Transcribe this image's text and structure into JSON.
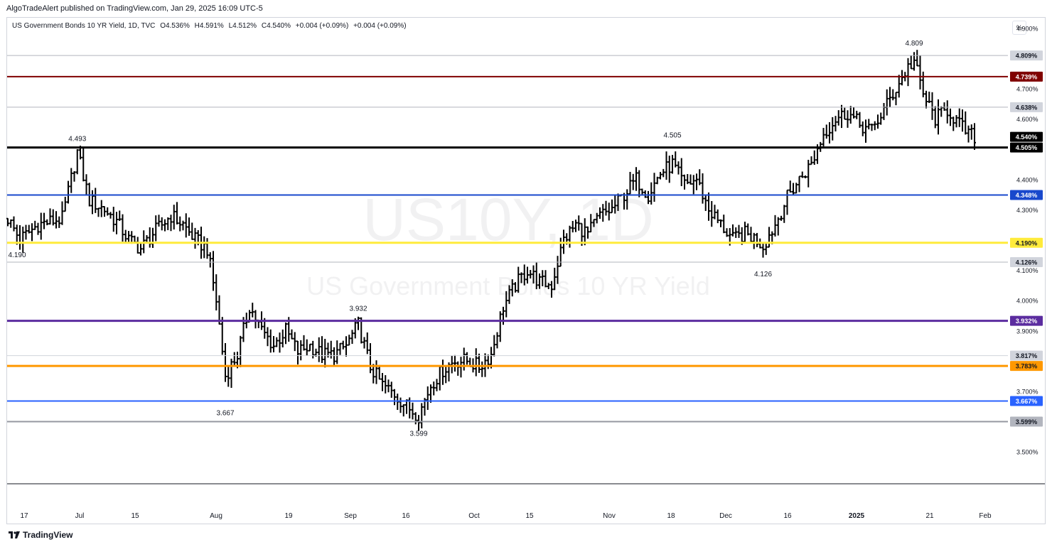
{
  "publisher": "AlgoTradeAlert published on TradingView.com, Jan 29, 2025 16:09 UTC-5",
  "legend": {
    "symbol": "US Government Bonds 10 YR Yield, 1D, TVC",
    "open": "O4.536%",
    "high": "H4.591%",
    "low": "L4.512%",
    "close": "C4.540%",
    "change1": "+0.004 (+0.09%)",
    "change2": "+0.004 (+0.09%)"
  },
  "scale_button": "%",
  "footer_logo_text": "TradingView",
  "watermark": {
    "ticker": "US10Y, 1D",
    "name": "US Government Bonds 10 YR Yield"
  },
  "chart_data": {
    "type": "ohlc",
    "ylim": [
      3.45,
      4.95
    ],
    "y_ticks": [
      "4.900%",
      "4.700%",
      "4.600%",
      "4.400%",
      "4.300%",
      "4.100%",
      "4.000%",
      "3.900%",
      "3.700%",
      "3.500%"
    ],
    "x_ticks": [
      "17",
      "Jul",
      "15",
      "Aug",
      "19",
      "Sep",
      "16",
      "Oct",
      "15",
      "Nov",
      "18",
      "Dec",
      "16",
      "2025",
      "21",
      "Feb"
    ],
    "horizontal_lines": [
      {
        "value": 4.809,
        "label": "4.809%",
        "color": "#b2b5be",
        "badge_bg": "#d1d4dc",
        "badge_fg": "#131722",
        "width": 1
      },
      {
        "value": 4.739,
        "label": "4.739%",
        "color": "#800000",
        "badge_bg": "#800000",
        "badge_fg": "#ffffff",
        "width": 2
      },
      {
        "value": 4.638,
        "label": "4.638%",
        "color": "#b2b5be",
        "badge_bg": "#d1d4dc",
        "badge_fg": "#131722",
        "width": 1
      },
      {
        "value": 4.505,
        "label": "4.505%",
        "color": "#000000",
        "badge_bg": "#000000",
        "badge_fg": "#ffffff",
        "width": 3
      },
      {
        "value": 4.348,
        "label": "4.348%",
        "color": "#1848cc",
        "badge_bg": "#1848cc",
        "badge_fg": "#ffffff",
        "width": 2
      },
      {
        "value": 4.19,
        "label": "4.190%",
        "color": "#ffeb3b",
        "badge_bg": "#ffeb3b",
        "badge_fg": "#131722",
        "width": 3
      },
      {
        "value": 4.126,
        "label": "4.126%",
        "color": "#b2b5be",
        "badge_bg": "#d1d4dc",
        "badge_fg": "#131722",
        "width": 1
      },
      {
        "value": 3.932,
        "label": "3.932%",
        "color": "#5b2c9f",
        "badge_bg": "#5b2c9f",
        "badge_fg": "#ffffff",
        "width": 3
      },
      {
        "value": 3.817,
        "label": "3.817%",
        "color": "#d1d4dc",
        "badge_bg": "#d1d4dc",
        "badge_fg": "#131722",
        "width": 1
      },
      {
        "value": 3.783,
        "label": "3.783%",
        "color": "#ff9800",
        "badge_bg": "#ff9800",
        "badge_fg": "#131722",
        "width": 3
      },
      {
        "value": 3.667,
        "label": "3.667%",
        "color": "#2962ff",
        "badge_bg": "#2962ff",
        "badge_fg": "#ffffff",
        "width": 2
      },
      {
        "value": 3.599,
        "label": "3.599%",
        "color": "#9598a1",
        "badge_bg": "#b2b5be",
        "badge_fg": "#131722",
        "width": 2
      }
    ],
    "last_price": {
      "value": 4.54,
      "label": "4.540%",
      "badge_bg": "#000000",
      "badge_fg": "#ffffff"
    },
    "annotations": [
      {
        "text": "4.493",
        "bar": 23,
        "value": 4.493,
        "position": "above"
      },
      {
        "text": "4.190",
        "bar": 0,
        "value": 4.19,
        "position": "below"
      },
      {
        "text": "3.667",
        "bar": 72,
        "value": 3.667,
        "position": "below"
      },
      {
        "text": "3.932",
        "bar": 116,
        "value": 3.932,
        "position": "above"
      },
      {
        "text": "3.599",
        "bar": 136,
        "value": 3.599,
        "position": "below"
      },
      {
        "text": "4.505",
        "bar": 220,
        "value": 4.505,
        "position": "above"
      },
      {
        "text": "4.126",
        "bar": 250,
        "value": 4.126,
        "position": "below"
      },
      {
        "text": "4.809",
        "bar": 300,
        "value": 4.809,
        "position": "above"
      }
    ],
    "anchors": [
      [
        0,
        4.27
      ],
      [
        4,
        4.2
      ],
      [
        10,
        4.25
      ],
      [
        18,
        4.27
      ],
      [
        23,
        4.49
      ],
      [
        27,
        4.33
      ],
      [
        32,
        4.3
      ],
      [
        36,
        4.26
      ],
      [
        40,
        4.2
      ],
      [
        44,
        4.17
      ],
      [
        48,
        4.22
      ],
      [
        54,
        4.28
      ],
      [
        58,
        4.25
      ],
      [
        62,
        4.2
      ],
      [
        66,
        4.17
      ],
      [
        69,
        4.0
      ],
      [
        72,
        3.75
      ],
      [
        76,
        3.82
      ],
      [
        80,
        3.98
      ],
      [
        84,
        3.9
      ],
      [
        88,
        3.85
      ],
      [
        92,
        3.9
      ],
      [
        96,
        3.83
      ],
      [
        100,
        3.85
      ],
      [
        104,
        3.82
      ],
      [
        108,
        3.82
      ],
      [
        112,
        3.85
      ],
      [
        116,
        3.92
      ],
      [
        120,
        3.78
      ],
      [
        124,
        3.72
      ],
      [
        128,
        3.69
      ],
      [
        132,
        3.65
      ],
      [
        136,
        3.62
      ],
      [
        140,
        3.72
      ],
      [
        144,
        3.77
      ],
      [
        148,
        3.8
      ],
      [
        152,
        3.8
      ],
      [
        156,
        3.78
      ],
      [
        160,
        3.82
      ],
      [
        164,
        3.98
      ],
      [
        168,
        4.05
      ],
      [
        172,
        4.1
      ],
      [
        176,
        4.06
      ],
      [
        180,
        4.05
      ],
      [
        184,
        4.2
      ],
      [
        188,
        4.25
      ],
      [
        192,
        4.22
      ],
      [
        196,
        4.28
      ],
      [
        200,
        4.3
      ],
      [
        204,
        4.35
      ],
      [
        208,
        4.4
      ],
      [
        212,
        4.35
      ],
      [
        216,
        4.42
      ],
      [
        220,
        4.45
      ],
      [
        224,
        4.38
      ],
      [
        228,
        4.4
      ],
      [
        232,
        4.3
      ],
      [
        236,
        4.25
      ],
      [
        240,
        4.2
      ],
      [
        244,
        4.22
      ],
      [
        248,
        4.2
      ],
      [
        250,
        4.18
      ],
      [
        254,
        4.25
      ],
      [
        258,
        4.34
      ],
      [
        262,
        4.4
      ],
      [
        266,
        4.45
      ],
      [
        270,
        4.55
      ],
      [
        274,
        4.6
      ],
      [
        278,
        4.62
      ],
      [
        282,
        4.58
      ],
      [
        286,
        4.56
      ],
      [
        290,
        4.63
      ],
      [
        294,
        4.7
      ],
      [
        298,
        4.77
      ],
      [
        300,
        4.79
      ],
      [
        303,
        4.68
      ],
      [
        307,
        4.6
      ],
      [
        311,
        4.63
      ],
      [
        315,
        4.58
      ],
      [
        318,
        4.55
      ],
      [
        320,
        4.54
      ]
    ]
  }
}
